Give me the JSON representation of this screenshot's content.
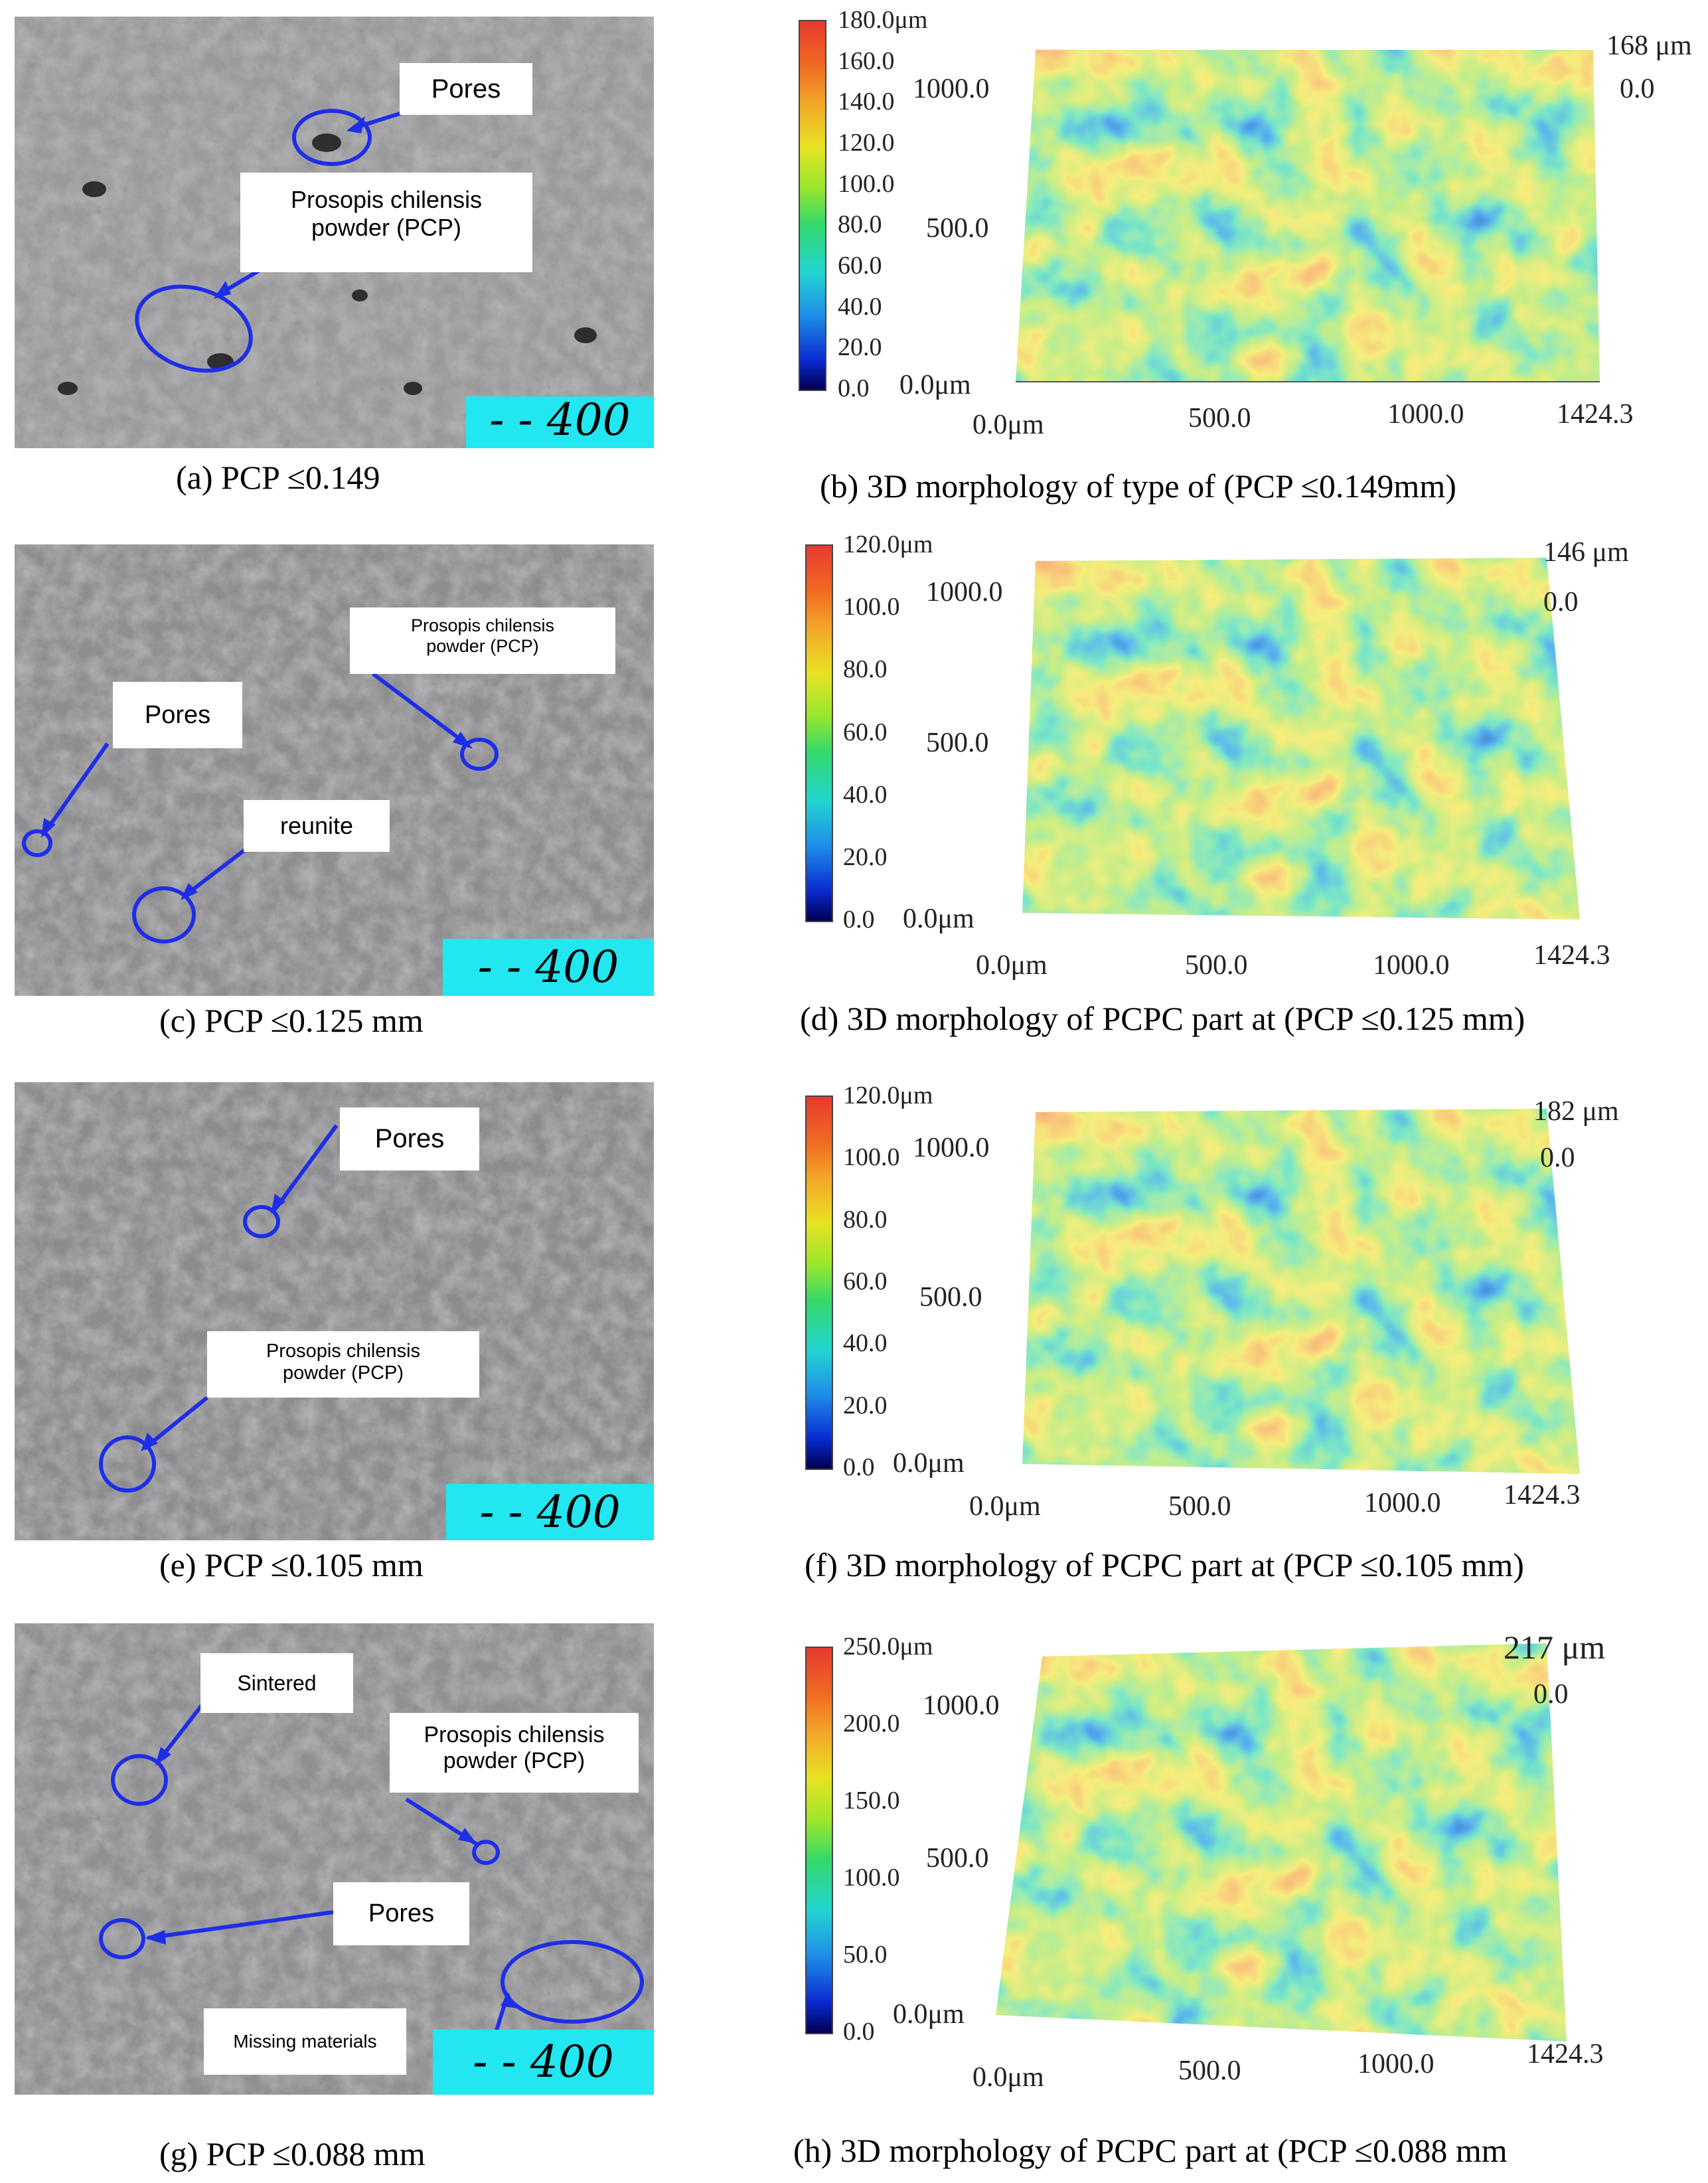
{
  "colors": {
    "scale_bar": "#22e6f0",
    "annotation": "#1e2ee6",
    "label_bg": "#ffffff"
  },
  "panels": {
    "a": {
      "caption": "(a)  PCP ≤0.149",
      "scale_bar": "- - 400 μm",
      "labels": {
        "pores": "Pores",
        "pcp_line1": "Prosopis chilensis",
        "pcp_line2": "powder (PCP)"
      }
    },
    "b": {
      "caption": "(b) 3D morphology of type of (PCP ≤0.149mm)",
      "colorbar_ticks": [
        "180.0μm",
        "160.0",
        "140.0",
        "120.0",
        "100.0",
        "80.0",
        "60.0",
        "40.0",
        "20.0",
        "0.0"
      ],
      "z_top": "168 μm",
      "z_bottom": "0.0",
      "y_ticks": [
        "1000.0",
        "500.0",
        "0.0μm"
      ],
      "x_ticks": [
        "0.0μm",
        "500.0",
        "1000.0",
        "1424.3"
      ]
    },
    "c": {
      "caption": "(c) PCP ≤0.125 mm",
      "scale_bar": "- - 400 μm",
      "labels": {
        "pcp_line1": "Prosopis chilensis",
        "pcp_line2": "powder (PCP)",
        "pores": "Pores",
        "reunite": "reunite"
      }
    },
    "d": {
      "caption": "(d) 3D morphology of PCPC part at (PCP ≤0.125 mm)",
      "colorbar_ticks": [
        "120.0μm",
        "100.0",
        "80.0",
        "60.0",
        "40.0",
        "20.0",
        "0.0"
      ],
      "z_top": "146 μm",
      "z_bottom": "0.0",
      "y_ticks": [
        "1000.0",
        "500.0",
        "0.0μm"
      ],
      "x_ticks": [
        "0.0μm",
        "500.0",
        "1000.0",
        "1424.3"
      ]
    },
    "e": {
      "caption": "(e) PCP ≤0.105 mm",
      "scale_bar": "- - 400 μm",
      "labels": {
        "pores": "Pores",
        "pcp_line1": "Prosopis chilensis",
        "pcp_line2": "powder (PCP)"
      }
    },
    "f": {
      "caption": "(f) 3D morphology of PCPC part at (PCP ≤0.105 mm)",
      "colorbar_ticks": [
        "120.0μm",
        "100.0",
        "80.0",
        "60.0",
        "40.0",
        "20.0",
        "0.0"
      ],
      "z_top": "182 μm",
      "z_bottom": "0.0",
      "y_ticks": [
        "1000.0",
        "500.0",
        "0.0μm"
      ],
      "x_ticks": [
        "0.0μm",
        "500.0",
        "1000.0",
        "1424.3"
      ]
    },
    "g": {
      "caption": "(g) PCP ≤0.088 mm",
      "scale_bar": "- - 400 μm",
      "labels": {
        "sintered": "Sintered",
        "pcp_line1": "Prosopis chilensis",
        "pcp_line2": "powder (PCP)",
        "pores": "Pores",
        "missing": "Missing materials"
      }
    },
    "h": {
      "caption": "(h) 3D morphology of PCPC part at (PCP ≤0.088 mm",
      "colorbar_ticks": [
        "250.0μm",
        "200.0",
        "150.0",
        "100.0",
        "50.0",
        "0.0"
      ],
      "z_top": "217 μm",
      "z_bottom": "0.0",
      "y_ticks": [
        "1000.0",
        "500.0",
        "0.0μm"
      ],
      "x_ticks": [
        "0.0μm",
        "500.0",
        "1000.0",
        "1424.3"
      ]
    }
  }
}
